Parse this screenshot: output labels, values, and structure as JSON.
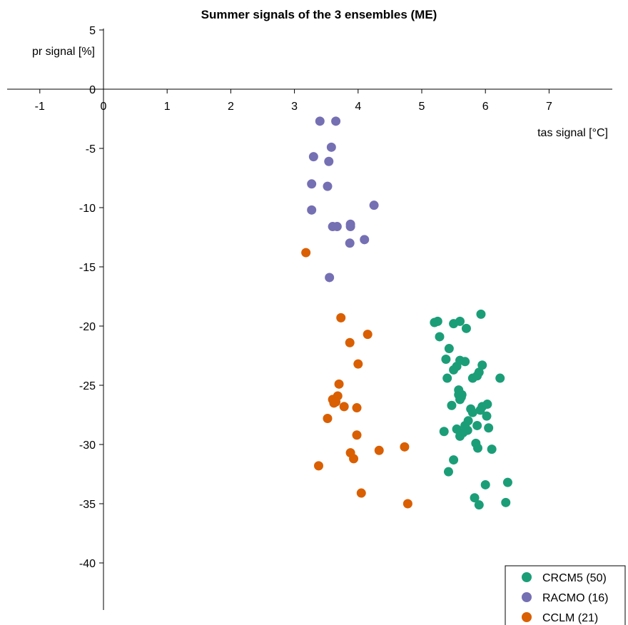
{
  "chart_data": {
    "type": "scatter",
    "title": "Summer signals of the 3 ensembles (ME)",
    "xlabel": "tas signal [°C]",
    "ylabel": "pr signal [%]",
    "xlim": [
      -1.5,
      7.9
    ],
    "ylim": [
      -43.5,
      5
    ],
    "x_ticks": [
      "-1",
      "0",
      "1",
      "2",
      "3",
      "4",
      "5",
      "6",
      "7"
    ],
    "y_ticks": [
      "5",
      "0",
      "-5",
      "-10",
      "-15",
      "-20",
      "-25",
      "-30",
      "-35",
      "-40"
    ],
    "legend_position": "bottom-right",
    "series": [
      {
        "name": "CRCM5 (50)",
        "color": "#1b9e77",
        "points": [
          [
            5.2,
            -19.7
          ],
          [
            5.25,
            -19.6
          ],
          [
            5.5,
            -19.8
          ],
          [
            5.6,
            -19.6
          ],
          [
            5.93,
            -19.0
          ],
          [
            5.7,
            -20.2
          ],
          [
            5.28,
            -20.9
          ],
          [
            5.43,
            -21.9
          ],
          [
            5.38,
            -22.8
          ],
          [
            5.6,
            -22.9
          ],
          [
            5.68,
            -23.0
          ],
          [
            5.55,
            -23.4
          ],
          [
            5.5,
            -23.7
          ],
          [
            5.95,
            -23.3
          ],
          [
            5.9,
            -23.9
          ],
          [
            5.87,
            -24.2
          ],
          [
            5.4,
            -24.4
          ],
          [
            5.8,
            -24.4
          ],
          [
            6.23,
            -24.4
          ],
          [
            5.58,
            -25.4
          ],
          [
            5.58,
            -25.8
          ],
          [
            5.63,
            -25.8
          ],
          [
            5.6,
            -26.2
          ],
          [
            5.62,
            -26.0
          ],
          [
            5.47,
            -26.7
          ],
          [
            5.95,
            -26.8
          ],
          [
            6.03,
            -26.6
          ],
          [
            5.77,
            -27.0
          ],
          [
            5.8,
            -27.3
          ],
          [
            5.92,
            -27.1
          ],
          [
            5.73,
            -28.0
          ],
          [
            5.87,
            -28.4
          ],
          [
            6.02,
            -27.6
          ],
          [
            5.55,
            -28.7
          ],
          [
            5.35,
            -28.9
          ],
          [
            5.72,
            -28.8
          ],
          [
            5.65,
            -29.0
          ],
          [
            5.6,
            -29.3
          ],
          [
            6.05,
            -28.6
          ],
          [
            5.85,
            -29.9
          ],
          [
            5.88,
            -30.3
          ],
          [
            6.1,
            -30.4
          ],
          [
            5.5,
            -31.3
          ],
          [
            5.42,
            -32.3
          ],
          [
            6.35,
            -33.2
          ],
          [
            6.0,
            -33.4
          ],
          [
            5.83,
            -34.5
          ],
          [
            5.9,
            -35.1
          ],
          [
            6.32,
            -34.9
          ],
          [
            5.68,
            -28.4
          ]
        ]
      },
      {
        "name": "RACMO (16)",
        "color": "#7570b3",
        "points": [
          [
            3.4,
            -2.7
          ],
          [
            3.65,
            -2.7
          ],
          [
            3.58,
            -4.9
          ],
          [
            3.3,
            -5.7
          ],
          [
            3.54,
            -6.1
          ],
          [
            3.27,
            -8.0
          ],
          [
            3.52,
            -8.2
          ],
          [
            3.27,
            -10.2
          ],
          [
            4.25,
            -9.8
          ],
          [
            3.6,
            -11.6
          ],
          [
            3.67,
            -11.6
          ],
          [
            3.88,
            -11.4
          ],
          [
            3.88,
            -11.6
          ],
          [
            4.1,
            -12.7
          ],
          [
            3.87,
            -13.0
          ],
          [
            3.55,
            -15.9
          ]
        ]
      },
      {
        "name": "CCLM (21)",
        "color": "#d95f02",
        "points": [
          [
            3.18,
            -13.8
          ],
          [
            3.73,
            -19.3
          ],
          [
            4.15,
            -20.7
          ],
          [
            3.87,
            -21.4
          ],
          [
            4.0,
            -23.2
          ],
          [
            3.7,
            -24.9
          ],
          [
            3.6,
            -26.2
          ],
          [
            3.68,
            -25.9
          ],
          [
            3.62,
            -26.5
          ],
          [
            3.65,
            -26.4
          ],
          [
            3.78,
            -26.8
          ],
          [
            3.98,
            -26.9
          ],
          [
            3.52,
            -27.8
          ],
          [
            3.98,
            -29.2
          ],
          [
            3.88,
            -30.7
          ],
          [
            4.33,
            -30.5
          ],
          [
            4.73,
            -30.2
          ],
          [
            3.93,
            -31.2
          ],
          [
            3.38,
            -31.8
          ],
          [
            4.05,
            -34.1
          ],
          [
            4.78,
            -35.0
          ]
        ]
      }
    ]
  }
}
